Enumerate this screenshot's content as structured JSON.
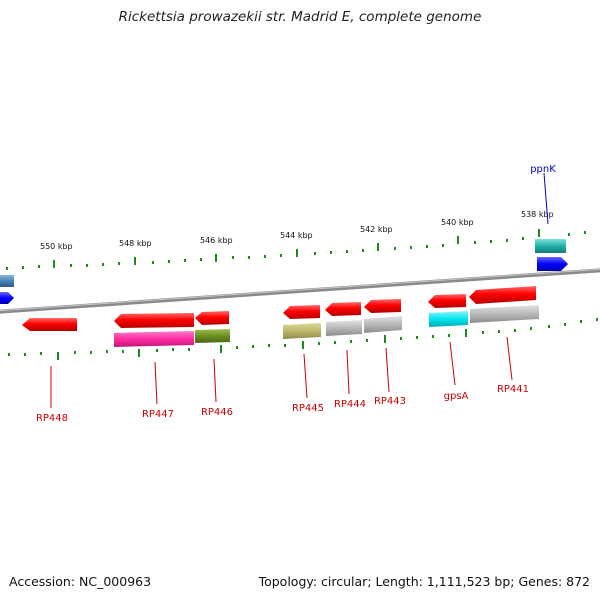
{
  "title": "Rickettsia prowazekii str. Madrid E, complete genome",
  "footer": {
    "accession": "Accession: NC_000963",
    "topology": "Topology: circular; Length: 1,111,523 bp; Genes: 872"
  },
  "scale_labels": [
    "550 kbp",
    "548 kbp",
    "546 kbp",
    "544 kbp",
    "542 kbp",
    "540 kbp",
    "538 kbp"
  ],
  "gene_labels": [
    {
      "name": "RP448",
      "color": "#cc0000"
    },
    {
      "name": "RP447",
      "color": "#cc0000"
    },
    {
      "name": "RP446",
      "color": "#cc0000"
    },
    {
      "name": "RP445",
      "color": "#cc0000"
    },
    {
      "name": "RP444",
      "color": "#cc0000"
    },
    {
      "name": "RP443",
      "color": "#cc0000"
    },
    {
      "name": "gpsA",
      "color": "#cc0000"
    },
    {
      "name": "RP441",
      "color": "#cc0000"
    },
    {
      "name": "ppnK",
      "color": "#0000cc"
    }
  ],
  "colors": {
    "backbone": "#808080",
    "scale_ticks": "#1a8a1a",
    "cds": "#ff0000",
    "highlight_magenta": "#ff2ba0",
    "highlight_olive": "#6b8e23",
    "highlight_khaki": "#bdb76b",
    "highlight_grey": "#b8b8b8",
    "highlight_cyan": "#00e5ee",
    "highlight_teal": "#20b2aa",
    "blue": "#0000ff",
    "steelblue": "#4682b4"
  }
}
